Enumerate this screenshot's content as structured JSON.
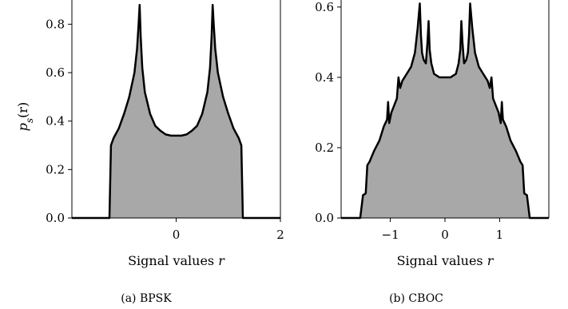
{
  "figure": {
    "ylabel_main": "p",
    "ylabel_sub": "s",
    "ylabel_tail": "(r)"
  },
  "chart_data": [
    {
      "type": "area",
      "caption": "(a) BPSK",
      "xlabel": "Signal values r",
      "ylabel": "p_s(r)",
      "xlim": [
        -2.0,
        2.0
      ],
      "ylim": [
        0,
        0.9
      ],
      "xticks": [
        0,
        2
      ],
      "yticks": [
        0.0,
        0.2,
        0.4,
        0.6,
        0.8
      ],
      "series": [
        {
          "x": [
            -2.0,
            -1.28,
            -1.25,
            -1.2,
            -1.1,
            -1.0,
            -0.9,
            -0.8,
            -0.75,
            -0.72,
            -0.7,
            -0.68,
            -0.65,
            -0.6,
            -0.5,
            -0.4,
            -0.3,
            -0.2,
            -0.1,
            0.0,
            0.1,
            0.2,
            0.3,
            0.4,
            0.5,
            0.6,
            0.65,
            0.68,
            0.7,
            0.72,
            0.75,
            0.8,
            0.9,
            1.0,
            1.1,
            1.2,
            1.25,
            1.28,
            2.0
          ],
          "y": [
            0.0,
            0.0,
            0.3,
            0.33,
            0.37,
            0.43,
            0.5,
            0.6,
            0.7,
            0.8,
            0.88,
            0.75,
            0.62,
            0.52,
            0.43,
            0.38,
            0.36,
            0.345,
            0.34,
            0.34,
            0.34,
            0.345,
            0.36,
            0.38,
            0.43,
            0.52,
            0.62,
            0.75,
            0.88,
            0.8,
            0.7,
            0.6,
            0.5,
            0.43,
            0.37,
            0.33,
            0.3,
            0.0,
            0.0
          ]
        }
      ]
    },
    {
      "type": "area",
      "caption": "(b) CBOC",
      "xlabel": "Signal values r",
      "ylabel": "",
      "xlim": [
        -1.9,
        1.9
      ],
      "ylim": [
        0,
        0.62
      ],
      "xticks": [
        -1,
        0,
        1
      ],
      "yticks": [
        0.0,
        0.2,
        0.4,
        0.6
      ],
      "series": [
        {
          "x": [
            -1.9,
            -1.55,
            -1.5,
            -1.45,
            -1.42,
            -1.38,
            -1.3,
            -1.2,
            -1.12,
            -1.06,
            -1.04,
            -1.02,
            -0.98,
            -0.93,
            -0.88,
            -0.85,
            -0.82,
            -0.78,
            -0.7,
            -0.62,
            -0.55,
            -0.5,
            -0.46,
            -0.44,
            -0.42,
            -0.39,
            -0.35,
            -0.32,
            -0.3,
            -0.28,
            -0.25,
            -0.2,
            -0.1,
            0.0,
            0.1,
            0.2,
            0.25,
            0.28,
            0.3,
            0.32,
            0.35,
            0.39,
            0.42,
            0.44,
            0.46,
            0.5,
            0.55,
            0.62,
            0.7,
            0.78,
            0.82,
            0.85,
            0.88,
            0.93,
            0.98,
            1.02,
            1.04,
            1.06,
            1.12,
            1.2,
            1.3,
            1.38,
            1.42,
            1.45,
            1.5,
            1.55,
            1.9
          ],
          "y": [
            0.0,
            0.0,
            0.065,
            0.07,
            0.15,
            0.16,
            0.19,
            0.22,
            0.26,
            0.28,
            0.33,
            0.27,
            0.3,
            0.32,
            0.34,
            0.4,
            0.37,
            0.39,
            0.41,
            0.43,
            0.47,
            0.54,
            0.61,
            0.52,
            0.47,
            0.45,
            0.44,
            0.5,
            0.56,
            0.48,
            0.44,
            0.41,
            0.4,
            0.4,
            0.4,
            0.41,
            0.44,
            0.48,
            0.56,
            0.5,
            0.44,
            0.45,
            0.47,
            0.52,
            0.61,
            0.54,
            0.47,
            0.43,
            0.41,
            0.39,
            0.37,
            0.4,
            0.34,
            0.32,
            0.3,
            0.27,
            0.33,
            0.28,
            0.26,
            0.22,
            0.19,
            0.16,
            0.15,
            0.07,
            0.065,
            0.0,
            0.0
          ]
        }
      ]
    }
  ]
}
